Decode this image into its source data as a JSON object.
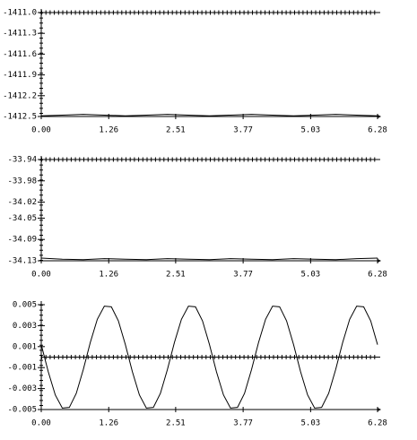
{
  "chart_data": [
    {
      "type": "line",
      "color": "#000000",
      "x": [
        0,
        0.393,
        0.785,
        1.178,
        1.571,
        1.963,
        2.356,
        2.749,
        3.142,
        3.534,
        3.927,
        4.32,
        4.712,
        5.105,
        5.498,
        5.89,
        6.28
      ],
      "values": [
        -1412.49,
        -1412.48,
        -1412.47,
        -1412.48,
        -1412.49,
        -1412.48,
        -1412.47,
        -1412.48,
        -1412.49,
        -1412.48,
        -1412.47,
        -1412.48,
        -1412.49,
        -1412.48,
        -1412.47,
        -1412.48,
        -1412.49
      ],
      "xlim": [
        0,
        6.28
      ],
      "ylim": [
        -1412.5,
        -1411.0
      ],
      "xticks": [
        {
          "value": 0,
          "label": "0.00"
        },
        1.26,
        2.51,
        3.77,
        5.03,
        6.28
      ],
      "yticks": [
        {
          "value": -1411.0,
          "label": "-1411.0"
        },
        -1411.3,
        -1411.6,
        -1411.9,
        -1412.2,
        -1412.5
      ]
    },
    {
      "type": "line",
      "color": "#000000",
      "x": [
        0,
        0.393,
        0.785,
        1.178,
        1.571,
        1.963,
        2.356,
        2.749,
        3.142,
        3.534,
        3.927,
        4.32,
        4.712,
        5.105,
        5.498,
        5.89,
        6.28
      ],
      "values": [
        -34.125,
        -34.127,
        -34.128,
        -34.126,
        -34.127,
        -34.128,
        -34.126,
        -34.127,
        -34.128,
        -34.126,
        -34.127,
        -34.128,
        -34.126,
        -34.127,
        -34.128,
        -34.126,
        -34.125
      ],
      "xlim": [
        0,
        6.28
      ],
      "ylim": [
        -34.13,
        -33.94
      ],
      "xticks": [
        {
          "value": 0,
          "label": "0.00"
        },
        1.26,
        2.51,
        3.77,
        5.03,
        6.28
      ],
      "yticks": [
        -33.94,
        -33.98,
        -34.02,
        -34.05,
        -34.09,
        -34.13
      ]
    },
    {
      "type": "line",
      "color": "#000000",
      "x": [
        0,
        0.131,
        0.262,
        0.393,
        0.524,
        0.654,
        0.785,
        0.916,
        1.047,
        1.178,
        1.309,
        1.44,
        1.571,
        1.702,
        1.833,
        1.963,
        2.094,
        2.225,
        2.356,
        2.487,
        2.618,
        2.749,
        2.88,
        3.011,
        3.142,
        3.272,
        3.403,
        3.534,
        3.665,
        3.796,
        3.927,
        4.058,
        4.189,
        4.32,
        4.451,
        4.581,
        4.712,
        4.843,
        4.974,
        5.105,
        5.236,
        5.367,
        5.498,
        5.629,
        5.76,
        5.89,
        6.021,
        6.152,
        6.28
      ],
      "values": [
        0.00119,
        -0.0014,
        -0.00361,
        -0.00486,
        -0.0048,
        -0.00346,
        -0.00119,
        0.0014,
        0.00361,
        0.00486,
        0.0048,
        0.00346,
        0.00119,
        -0.0014,
        -0.00361,
        -0.00486,
        -0.0048,
        -0.00346,
        -0.00119,
        0.0014,
        0.00361,
        0.00486,
        0.0048,
        0.00346,
        0.00119,
        -0.0014,
        -0.00361,
        -0.00486,
        -0.0048,
        -0.00346,
        -0.00119,
        0.0014,
        0.00361,
        0.00486,
        0.0048,
        0.00346,
        0.00119,
        -0.0014,
        -0.00361,
        -0.00486,
        -0.0048,
        -0.00346,
        -0.00119,
        0.0014,
        0.00361,
        0.00486,
        0.0048,
        0.00346,
        0.00119
      ],
      "xlim": [
        0,
        6.28
      ],
      "ylim": [
        -0.005,
        0.005
      ],
      "xticks": [
        {
          "value": 0,
          "label": "0.00"
        },
        1.26,
        2.51,
        3.77,
        5.03,
        6.28
      ],
      "yticks": [
        0.005,
        0.003,
        0.001,
        -0.001,
        -0.003,
        -0.005
      ]
    }
  ]
}
